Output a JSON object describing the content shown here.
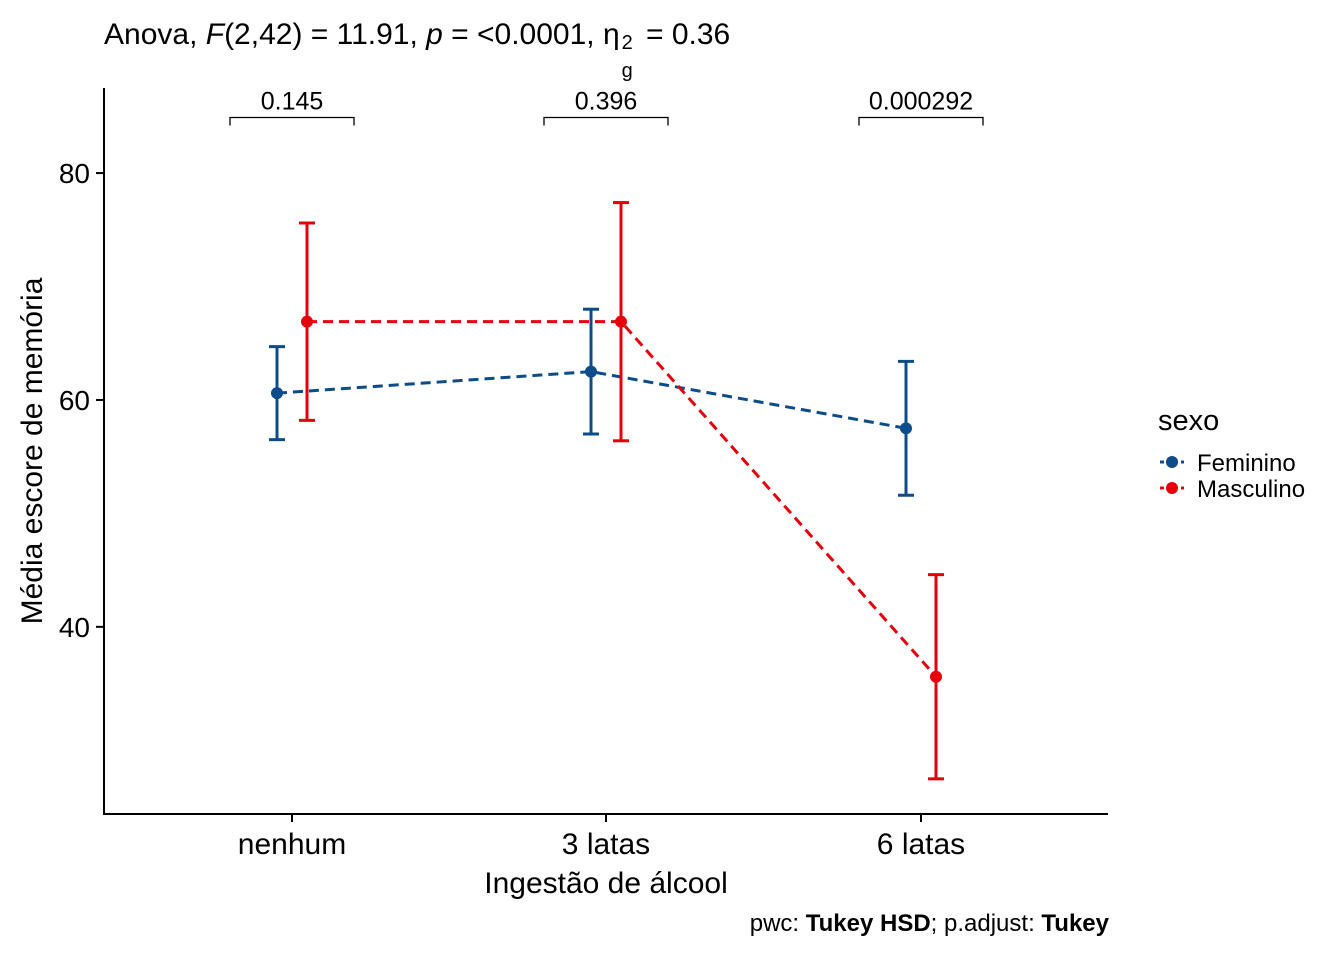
{
  "title": {
    "prefix": "Anova, ",
    "F_symbol": "F",
    "F_args": "(2,42) = 11.91, ",
    "p_symbol": "p",
    "p_value": " = <0.0001, ",
    "eta_symbol": "η",
    "eta_sup": "2",
    "eta_sub": "g",
    "eta_value": " = 0.36"
  },
  "caption": {
    "pwc_label": "pwc: ",
    "pwc_value": "Tukey HSD",
    "adjust_label": "; p.adjust: ",
    "adjust_value": "Tukey"
  },
  "colors": {
    "Feminino": "#0C4C8A",
    "Masculino": "#E7000B",
    "axis": "#000000"
  },
  "chart_data": {
    "type": "line",
    "xlabel": "Ingestão de álcool",
    "ylabel": "Média escore de memória",
    "categories": [
      "nenhum",
      "3 latas",
      "6 latas"
    ],
    "ylim": [
      23.5,
      87.5
    ],
    "yticks": [
      40,
      60,
      80
    ],
    "grid": false,
    "legend": {
      "title": "sexo",
      "position": "right"
    },
    "series": [
      {
        "name": "Feminino",
        "values": [
          60.6,
          62.5,
          57.5
        ],
        "lower": [
          56.5,
          57.0,
          51.6
        ],
        "upper": [
          64.7,
          68.0,
          63.4
        ],
        "linestyle": "dashed"
      },
      {
        "name": "Masculino",
        "values": [
          66.9,
          66.9,
          35.6
        ],
        "lower": [
          58.2,
          56.4,
          26.6
        ],
        "upper": [
          75.6,
          77.4,
          44.6
        ],
        "linestyle": "dashed"
      }
    ],
    "annotations": [
      {
        "category": "nenhum",
        "label": "0.145",
        "y": 84.9
      },
      {
        "category": "3 latas",
        "label": "0.396",
        "y": 84.9
      },
      {
        "category": "6 latas",
        "label": "0.000292",
        "y": 84.9
      }
    ]
  }
}
